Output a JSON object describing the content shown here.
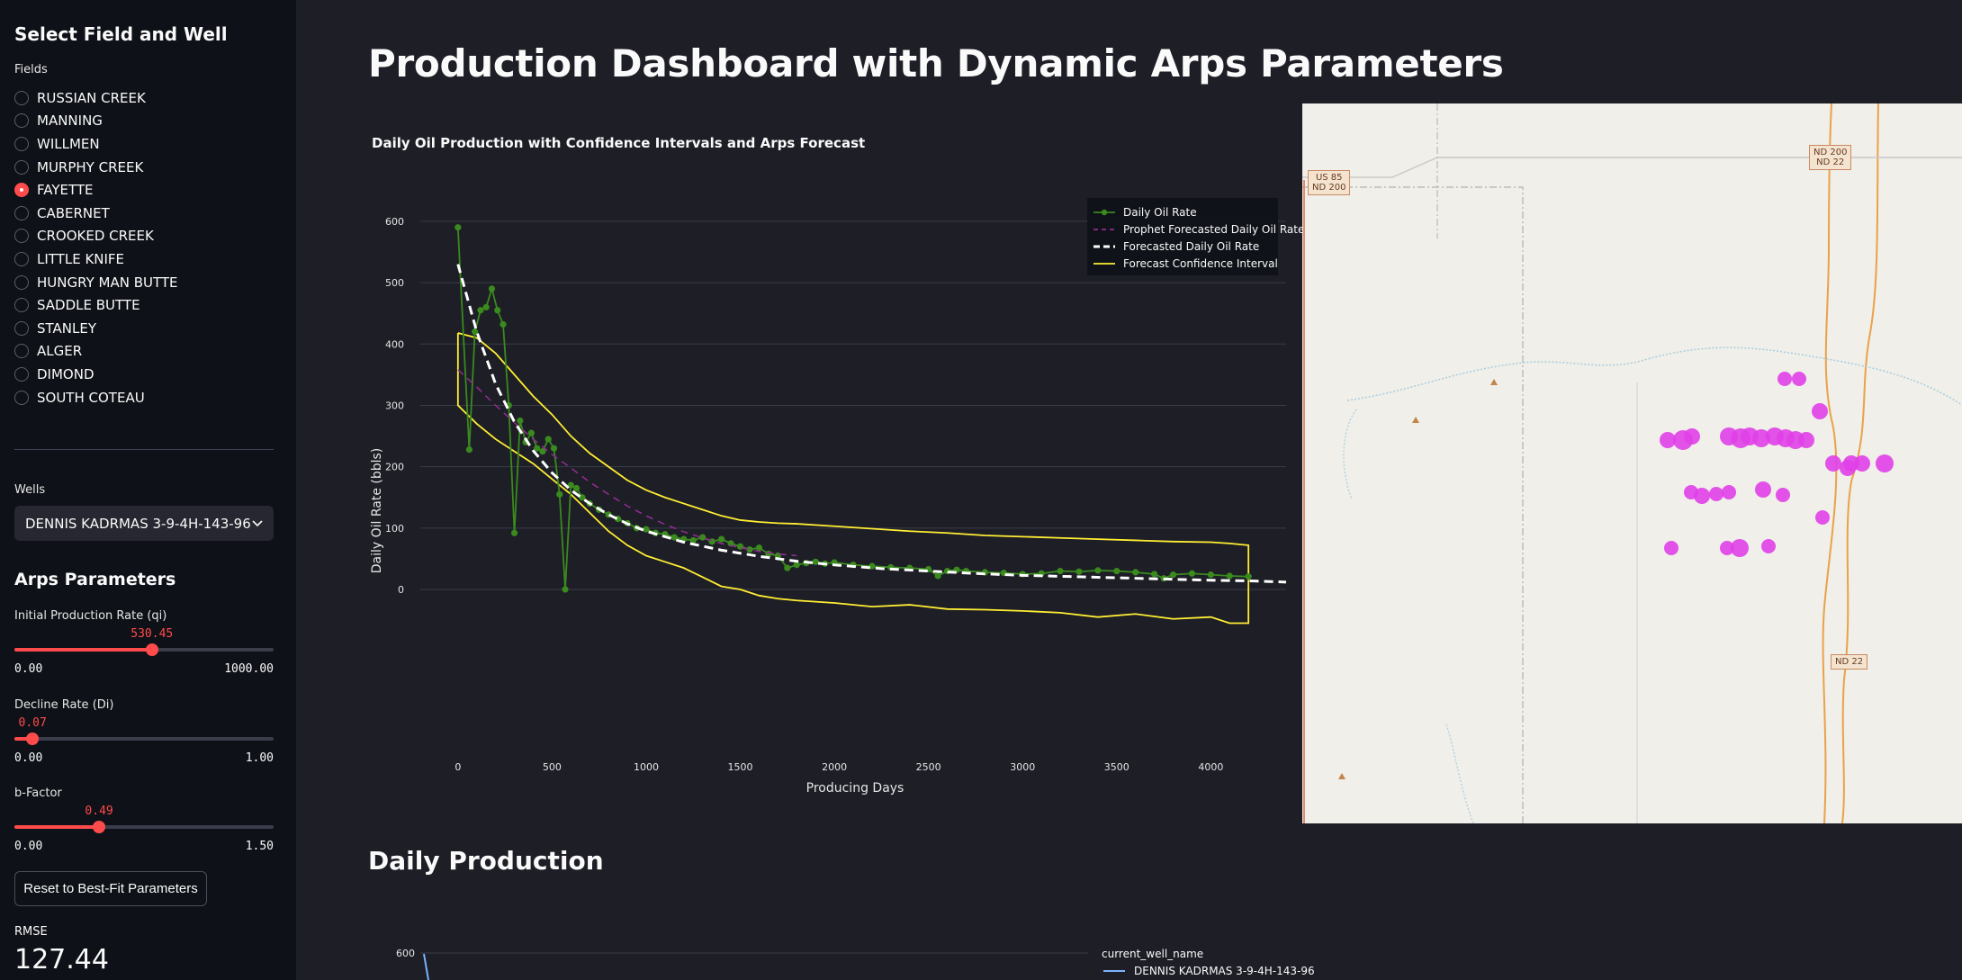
{
  "sidebar": {
    "title": "Select Field and Well",
    "fields_label": "Fields",
    "fields": [
      "RUSSIAN CREEK",
      "MANNING",
      "WILLMEN",
      "MURPHY CREEK",
      "FAYETTE",
      "CABERNET",
      "CROOKED CREEK",
      "LITTLE KNIFE",
      "HUNGRY MAN BUTTE",
      "SADDLE BUTTE",
      "STANLEY",
      "ALGER",
      "DIMOND",
      "SOUTH COTEAU"
    ],
    "selected_field": "FAYETTE",
    "wells_label": "Wells",
    "selected_well": "DENNIS KADRMAS 3-9-4H-143-96",
    "arps_title": "Arps Parameters",
    "sliders": [
      {
        "label": "Initial Production Rate (qi)",
        "value": 530.45,
        "display": "530.45",
        "min": "0.00",
        "max": "1000.00",
        "fraction": 0.53045
      },
      {
        "label": "Decline Rate (Di)",
        "value": 0.07,
        "display": "0.07",
        "min": "0.00",
        "max": "1.00",
        "fraction": 0.07
      },
      {
        "label": "b-Factor",
        "value": 0.49,
        "display": "0.49",
        "min": "0.00",
        "max": "1.50",
        "fraction": 0.3267
      }
    ],
    "reset_button": "Reset to Best-Fit Parameters",
    "rmse_label": "RMSE",
    "rmse_value": "127.44"
  },
  "main": {
    "title": "Production Dashboard with Dynamic Arps Parameters",
    "section2_title": "Daily Production"
  },
  "map": {
    "road_labels": [
      "US 85\nND 200",
      "ND 200\nND 22",
      "ND 22"
    ]
  },
  "colors": {
    "accent": "#ff4b4b",
    "daily_oil": "#3a8a1e",
    "prophet": "#8e2c8e",
    "forecast": "#ffffff",
    "confidence": "#ffee33",
    "well_markers": "#e040e8"
  },
  "chart_data": [
    {
      "type": "line",
      "title": "Daily Oil Production with Confidence Intervals and Arps Forecast",
      "xlabel": "Producing Days",
      "ylabel": "Daily Oil Rate (bbls)",
      "xlim": [
        -200,
        4400
      ],
      "ylim": [
        -110,
        660
      ],
      "xticks": [
        0,
        500,
        1000,
        1500,
        2000,
        2500,
        3000,
        3500,
        4000
      ],
      "yticks": [
        0,
        100,
        200,
        300,
        400,
        500,
        600
      ],
      "legend_position": "top-right",
      "grid": true,
      "series": [
        {
          "name": "Daily Oil Rate",
          "style": "line-markers",
          "x": [
            0,
            60,
            90,
            120,
            150,
            180,
            210,
            240,
            270,
            300,
            330,
            360,
            390,
            420,
            450,
            480,
            510,
            540,
            570,
            600,
            630,
            660,
            700,
            750,
            800,
            850,
            900,
            950,
            1000,
            1050,
            1100,
            1150,
            1200,
            1250,
            1300,
            1350,
            1400,
            1450,
            1500,
            1550,
            1600,
            1650,
            1700,
            1750,
            1800,
            1850,
            1900,
            1950,
            2000,
            2100,
            2200,
            2300,
            2400,
            2500,
            2550,
            2600,
            2650,
            2700,
            2800,
            2900,
            3000,
            3100,
            3200,
            3300,
            3400,
            3500,
            3600,
            3700,
            3750,
            3800,
            3900,
            4000,
            4100,
            4200
          ],
          "y": [
            590,
            228,
            420,
            455,
            460,
            490,
            455,
            432,
            300,
            92,
            275,
            240,
            255,
            230,
            225,
            245,
            230,
            155,
            0,
            170,
            165,
            150,
            140,
            130,
            122,
            115,
            108,
            100,
            98,
            92,
            90,
            85,
            82,
            80,
            85,
            78,
            82,
            75,
            70,
            65,
            68,
            58,
            55,
            35,
            40,
            43,
            45,
            42,
            44,
            40,
            38,
            36,
            35,
            33,
            22,
            30,
            32,
            30,
            28,
            27,
            25,
            26,
            30,
            29,
            31,
            30,
            28,
            25,
            18,
            24,
            26,
            24,
            22,
            21
          ]
        },
        {
          "name": "Prophet Forecasted Daily Oil Rate",
          "style": "dash",
          "x": [
            0,
            100,
            200,
            300,
            400,
            500,
            600,
            700,
            800,
            900,
            1000,
            1100,
            1200,
            1300,
            1400,
            1500,
            1600,
            1700,
            1800
          ],
          "y": [
            358,
            330,
            300,
            272,
            245,
            220,
            198,
            175,
            155,
            136,
            120,
            106,
            94,
            84,
            75,
            68,
            62,
            58,
            55
          ]
        },
        {
          "name": "Forecasted Daily Oil Rate",
          "style": "dash-thick",
          "x": [
            0,
            100,
            200,
            300,
            400,
            500,
            600,
            700,
            800,
            900,
            1000,
            1200,
            1400,
            1600,
            1800,
            2000,
            2250,
            2500,
            2750,
            3000,
            3250,
            3500,
            3750,
            4000,
            4200,
            4400
          ],
          "y": [
            530,
            420,
            335,
            273,
            226,
            190,
            162,
            140,
            122,
            107,
            95,
            77,
            64,
            54,
            46,
            40,
            34,
            30,
            26,
            23,
            21,
            19,
            17,
            15,
            14,
            12
          ]
        },
        {
          "name": "Forecast Confidence Interval",
          "style": "line",
          "x": [
            0,
            100,
            200,
            300,
            400,
            500,
            600,
            700,
            800,
            900,
            1000,
            1100,
            1200,
            1300,
            1400,
            1500,
            1600,
            1700,
            1800,
            2000,
            2200,
            2400,
            2600,
            2800,
            3000,
            3200,
            3400,
            3600,
            3800,
            4000,
            4100,
            4200,
            4200,
            4100,
            4000,
            3800,
            3600,
            3400,
            3200,
            3000,
            2800,
            2600,
            2400,
            2200,
            2000,
            1800,
            1700,
            1600,
            1500,
            1400,
            1300,
            1200,
            1100,
            1000,
            900,
            800,
            700,
            600,
            500,
            400,
            300,
            200,
            100,
            0
          ],
          "y": [
            418,
            410,
            385,
            350,
            315,
            285,
            250,
            222,
            200,
            178,
            162,
            150,
            140,
            130,
            120,
            113,
            110,
            108,
            107,
            103,
            99,
            95,
            92,
            88,
            86,
            84,
            82,
            80,
            78,
            77,
            75,
            72,
            -55,
            -55,
            -45,
            -48,
            -40,
            -45,
            -38,
            -35,
            -33,
            -32,
            -25,
            -28,
            -22,
            -18,
            -15,
            -10,
            0,
            5,
            20,
            35,
            45,
            55,
            72,
            95,
            125,
            155,
            180,
            205,
            225,
            245,
            270,
            300
          ]
        }
      ]
    },
    {
      "type": "line",
      "yticks": [
        600
      ],
      "legend_title": "current_well_name",
      "series": [
        {
          "name": "DENNIS KADRMAS 3-9-4H-143-96",
          "x": [
            0,
            5
          ],
          "y": [
            600,
            520
          ]
        }
      ]
    }
  ]
}
